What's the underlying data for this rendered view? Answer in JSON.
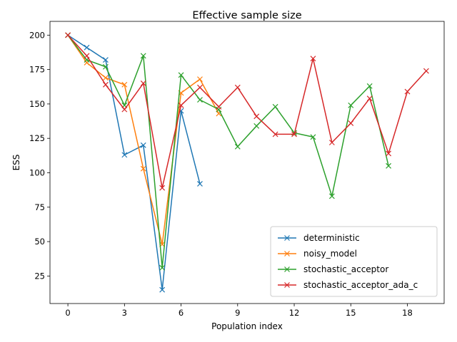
{
  "chart_data": {
    "type": "line",
    "title": "Effective sample size",
    "xlabel": "Population index",
    "ylabel": "ESS",
    "xlim": [
      -0.95,
      19.95
    ],
    "ylim": [
      5,
      210
    ],
    "xticks": [
      0,
      3,
      6,
      9,
      12,
      15,
      18
    ],
    "yticks": [
      25,
      50,
      75,
      100,
      125,
      150,
      175,
      200
    ],
    "grid": false,
    "legend_position": "lower-right",
    "marker": "x",
    "series": [
      {
        "name": "deterministic",
        "color": "#1f77b4",
        "x": [
          0,
          1,
          2,
          3,
          4,
          5,
          6,
          7
        ],
        "y": [
          200,
          191,
          182,
          113,
          120,
          15,
          145,
          92
        ]
      },
      {
        "name": "noisy_model",
        "color": "#ff7f0e",
        "x": [
          0,
          1,
          2,
          3,
          4,
          5,
          6,
          7,
          8
        ],
        "y": [
          200,
          180,
          169,
          164,
          103,
          48,
          158,
          168,
          143
        ]
      },
      {
        "name": "stochastic_acceptor",
        "color": "#2ca02c",
        "x": [
          0,
          1,
          2,
          3,
          4,
          5,
          6,
          7,
          8,
          9,
          10,
          11,
          12,
          13,
          14,
          15,
          16,
          17
        ],
        "y": [
          200,
          182,
          177,
          149,
          185,
          31,
          171,
          153,
          146,
          119,
          134,
          148,
          129,
          126,
          83,
          149,
          163,
          105
        ]
      },
      {
        "name": "stochastic_acceptor_ada_c",
        "color": "#d62728",
        "x": [
          0,
          1,
          2,
          3,
          4,
          5,
          6,
          7,
          8,
          9,
          10,
          11,
          12,
          13,
          14,
          15,
          16,
          17,
          18,
          19
        ],
        "y": [
          200,
          185,
          164,
          146,
          165,
          89,
          149,
          162,
          148,
          162,
          141,
          128,
          128,
          183,
          122,
          136,
          154,
          114,
          159,
          174
        ]
      }
    ]
  }
}
